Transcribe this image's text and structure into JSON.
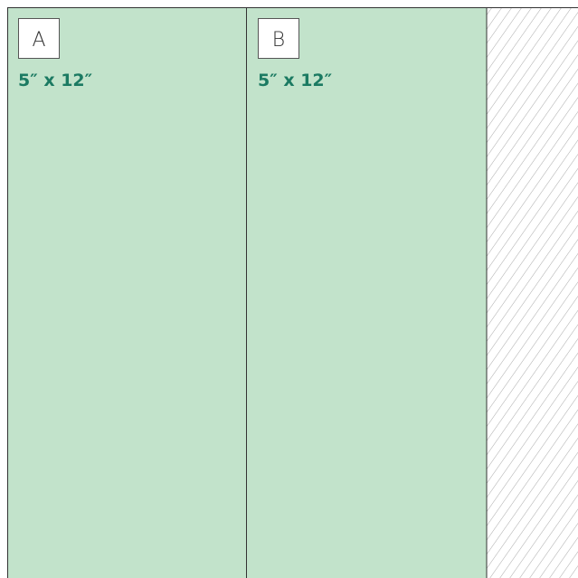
{
  "pieces": [
    {
      "label": "A",
      "size": "5″ x 12″"
    },
    {
      "label": "B",
      "size": "5″ x 12″"
    }
  ]
}
